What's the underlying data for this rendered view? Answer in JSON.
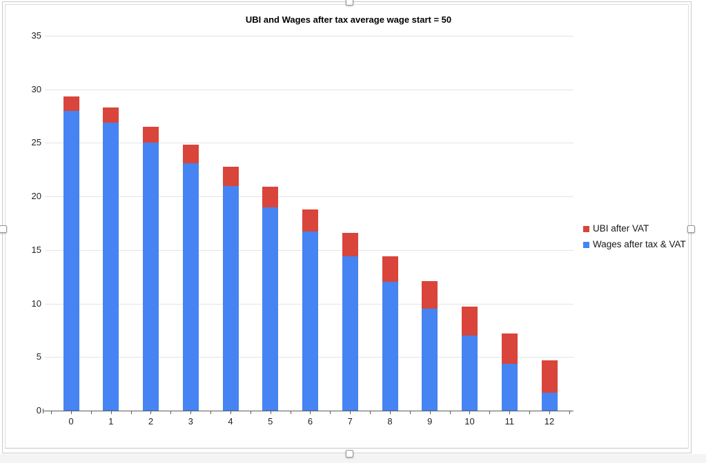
{
  "window": {
    "background": "#ffffff",
    "bottom_strip_color": "#f4f4f4",
    "selection_frame_color": "#c9c9c9",
    "selection_handles": [
      "top-middle",
      "bottom-middle",
      "left-middle",
      "right-middle"
    ]
  },
  "chart_data": {
    "type": "bar",
    "stacked": true,
    "title": "UBI and Wages after tax average wage start = 50",
    "categories": [
      "0",
      "1",
      "2",
      "3",
      "4",
      "5",
      "6",
      "7",
      "8",
      "9",
      "10",
      "11",
      "12"
    ],
    "series": [
      {
        "name": "Wages after tax & VAT",
        "color": "#4584f2",
        "values": [
          28.0,
          26.9,
          25.0,
          23.1,
          21.0,
          19.0,
          16.7,
          14.4,
          12.0,
          9.5,
          7.0,
          4.4,
          1.7
        ]
      },
      {
        "name": "UBI after VAT",
        "color": "#d9453a",
        "values": [
          1.3,
          1.4,
          1.5,
          1.7,
          1.8,
          1.9,
          2.1,
          2.2,
          2.4,
          2.6,
          2.7,
          2.8,
          3.0
        ]
      }
    ],
    "legend_items": [
      {
        "label": "UBI after VAT",
        "color": "#d9453a"
      },
      {
        "label": "Wages after tax & VAT",
        "color": "#4584f2"
      }
    ],
    "xlabel": "",
    "ylabel": "",
    "ylim": [
      0,
      35
    ],
    "yticks": [
      0,
      5,
      10,
      15,
      20,
      25,
      30,
      35
    ],
    "grid": true,
    "legend_position": "right",
    "axis_color": "#595959",
    "gridline_color": "#e4e4e4"
  }
}
